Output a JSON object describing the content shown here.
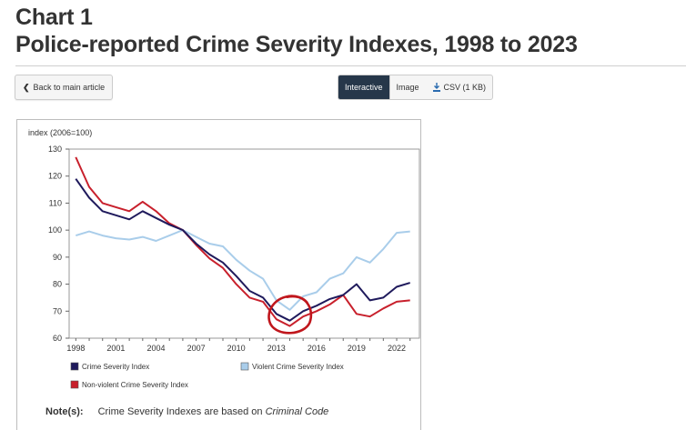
{
  "header": {
    "chart_label": "Chart 1",
    "chart_title": "Police-reported Crime Severity Indexes, 1998 to 2023"
  },
  "toolbar": {
    "back_label": "Back to main article",
    "views": [
      {
        "label": "Interactive",
        "active": true
      },
      {
        "label": "Image",
        "active": false
      },
      {
        "label": "CSV (1 KB)",
        "active": false,
        "icon": "download-icon"
      }
    ]
  },
  "note": {
    "label": "Note(s):",
    "text_before": "Crime Severity Indexes are based on ",
    "text_italic": "Criminal Code"
  },
  "annotation": {
    "type": "hand-drawn-circle",
    "color": "#c0161c",
    "around_year": 2014
  },
  "chart_data": {
    "type": "line",
    "title": "",
    "ylabel": "index (2006=100)",
    "xlabel": "",
    "ylim": [
      60,
      130
    ],
    "yticks": [
      60,
      70,
      80,
      90,
      100,
      110,
      120,
      130
    ],
    "xticks": [
      1998,
      2001,
      2004,
      2007,
      2010,
      2013,
      2016,
      2019,
      2022
    ],
    "grid": false,
    "legend_position": "bottom",
    "x": [
      1998,
      1999,
      2000,
      2001,
      2002,
      2003,
      2004,
      2005,
      2006,
      2007,
      2008,
      2009,
      2010,
      2011,
      2012,
      2013,
      2014,
      2015,
      2016,
      2017,
      2018,
      2019,
      2020,
      2021,
      2022,
      2023
    ],
    "series": [
      {
        "name": "Crime Severity Index",
        "color": "#1f1a5c",
        "values": [
          119,
          112,
          107,
          105.5,
          104,
          107,
          104.5,
          102,
          100,
          95,
          91,
          88,
          83,
          77.5,
          75,
          69,
          66.5,
          70,
          72,
          74.5,
          76,
          80,
          74,
          75,
          79,
          80.5
        ]
      },
      {
        "name": "Violent Crime Severity Index",
        "color": "#a9cdea",
        "values": [
          98,
          99.5,
          98,
          97,
          96.5,
          97.5,
          96,
          98,
          100,
          97.5,
          95,
          94,
          89,
          85,
          82,
          74,
          70.5,
          75.5,
          77,
          82,
          84,
          90,
          88,
          93,
          99,
          99.5
        ]
      },
      {
        "name": "Non-violent Crime Severity Index",
        "color": "#c8202c",
        "values": [
          127,
          116,
          110,
          108.5,
          107,
          110.5,
          107,
          102.5,
          100,
          94.5,
          89.5,
          86,
          80,
          75,
          73.5,
          67,
          64.5,
          68,
          70,
          72.5,
          76,
          69,
          68,
          71,
          73.5,
          74
        ]
      }
    ]
  }
}
